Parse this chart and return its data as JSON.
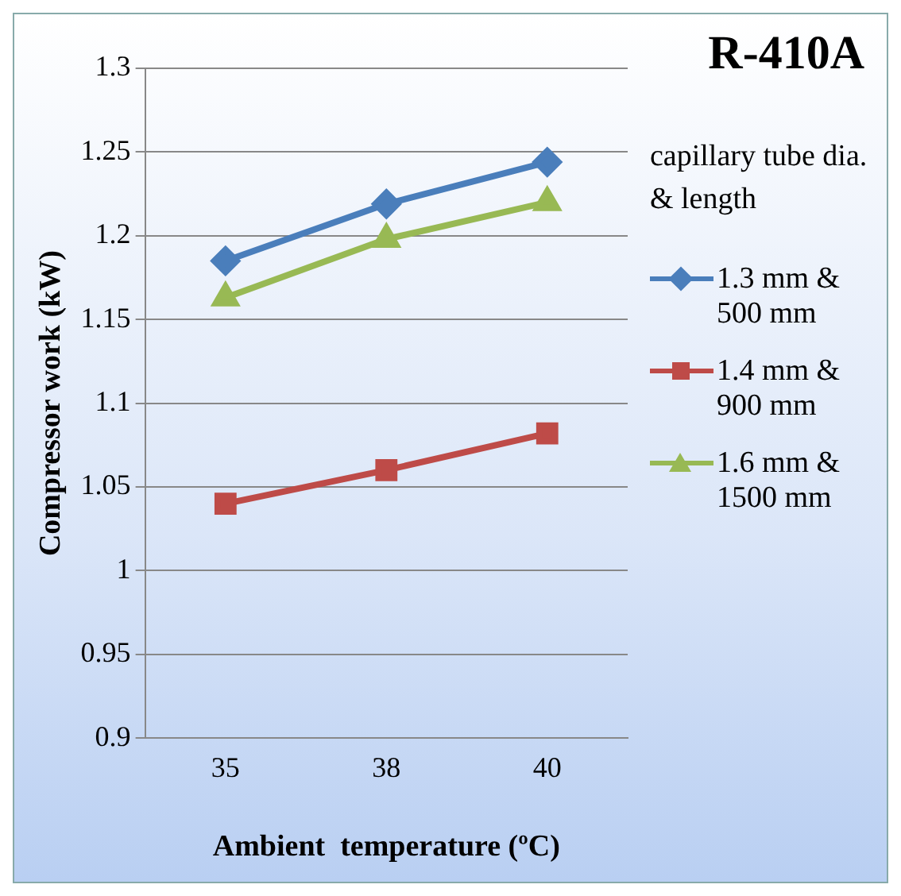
{
  "chart_data": {
    "type": "line",
    "title": "R-410A",
    "xlabel": "Ambient  temperature (ºC)",
    "ylabel": "Compressor work (kW)",
    "legend_title": "capillary tube dia. & length",
    "categories": [
      "35",
      "38",
      "40"
    ],
    "series": [
      {
        "name": "1.3 mm & 500 mm",
        "color": "#4a7ebb",
        "marker": "diamond",
        "values": [
          1.185,
          1.219,
          1.244
        ]
      },
      {
        "name": "1.4 mm & 900 mm",
        "color": "#be4b48",
        "marker": "square",
        "values": [
          1.04,
          1.06,
          1.082
        ]
      },
      {
        "name": "1.6 mm & 1500 mm",
        "color": "#98b954",
        "marker": "triangle",
        "values": [
          1.163,
          1.198,
          1.22
        ]
      }
    ],
    "ylim": [
      0.9,
      1.3
    ],
    "yticks": [
      0.9,
      0.95,
      1,
      1.05,
      1.1,
      1.15,
      1.2,
      1.25,
      1.3
    ],
    "grid": "y",
    "legend": "right",
    "line_style": "solid"
  }
}
